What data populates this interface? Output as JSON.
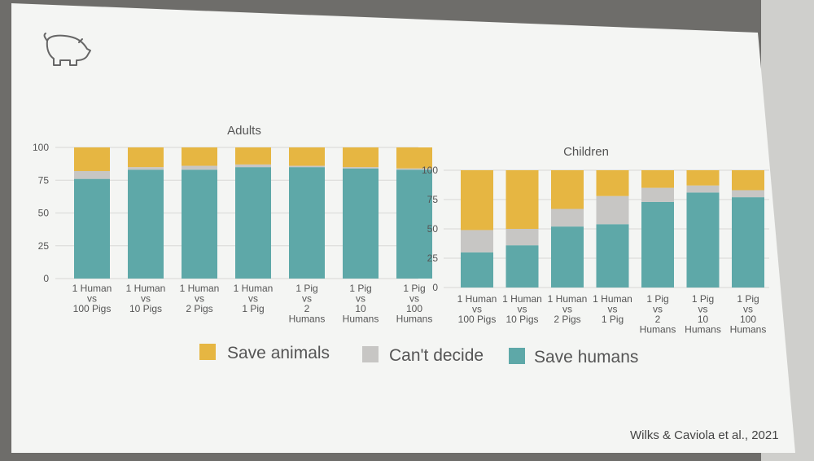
{
  "colors": {
    "save_animals": "#e6b642",
    "cant_decide": "#c7c6c4",
    "save_humans": "#5ea8a8",
    "slide_background": "#f4f5f3",
    "text": "#555555"
  },
  "icon": "pig-icon",
  "legend": {
    "save_animals": "Save animals",
    "cant_decide": "Can't decide",
    "save_humans": "Save humans"
  },
  "credit": "Wilks & Caviola et al., 2021",
  "chart_data": [
    {
      "type": "bar",
      "stacked": true,
      "title": "Adults",
      "ylim": [
        0,
        100
      ],
      "yticks": [
        "0",
        "25",
        "50",
        "75",
        "100"
      ],
      "grid": true,
      "legend_position": "bottom",
      "categories": [
        [
          "1 Human",
          "vs",
          "100 Pigs"
        ],
        [
          "1 Human",
          "vs",
          "10 Pigs"
        ],
        [
          "1 Human",
          "vs",
          "2 Pigs"
        ],
        [
          "1 Human",
          "vs",
          "1 Pig"
        ],
        [
          "1 Pig",
          "vs",
          "2",
          "Humans"
        ],
        [
          "1 Pig",
          "vs",
          "10",
          "Humans"
        ],
        [
          "1 Pig",
          "vs",
          "100",
          "Humans"
        ]
      ],
      "series": [
        {
          "name": "Save humans",
          "values": [
            76,
            83,
            83,
            85,
            85,
            84,
            83
          ]
        },
        {
          "name": "Can't decide",
          "values": [
            6,
            2,
            3,
            2,
            1,
            1,
            1
          ]
        },
        {
          "name": "Save animals",
          "values": [
            18,
            15,
            14,
            13,
            14,
            15,
            16
          ]
        }
      ]
    },
    {
      "type": "bar",
      "stacked": true,
      "title": "Children",
      "ylim": [
        0,
        100
      ],
      "yticks": [
        "0",
        "25",
        "50",
        "75",
        "100"
      ],
      "grid": true,
      "legend_position": "bottom",
      "categories": [
        [
          "1 Human",
          "vs",
          "100 Pigs"
        ],
        [
          "1 Human",
          "vs",
          "10 Pigs"
        ],
        [
          "1 Human",
          "vs",
          "2 Pigs"
        ],
        [
          "1 Human",
          "vs",
          "1 Pig"
        ],
        [
          "1 Pig",
          "vs",
          "2",
          "Humans"
        ],
        [
          "1 Pig",
          "vs",
          "10",
          "Humans"
        ],
        [
          "1 Pig",
          "vs",
          "100",
          "Humans"
        ]
      ],
      "series": [
        {
          "name": "Save humans",
          "values": [
            30,
            36,
            52,
            54,
            73,
            81,
            77
          ]
        },
        {
          "name": "Can't decide",
          "values": [
            19,
            14,
            15,
            24,
            12,
            6,
            6
          ]
        },
        {
          "name": "Save animals",
          "values": [
            51,
            50,
            33,
            22,
            15,
            13,
            17
          ]
        }
      ]
    }
  ]
}
